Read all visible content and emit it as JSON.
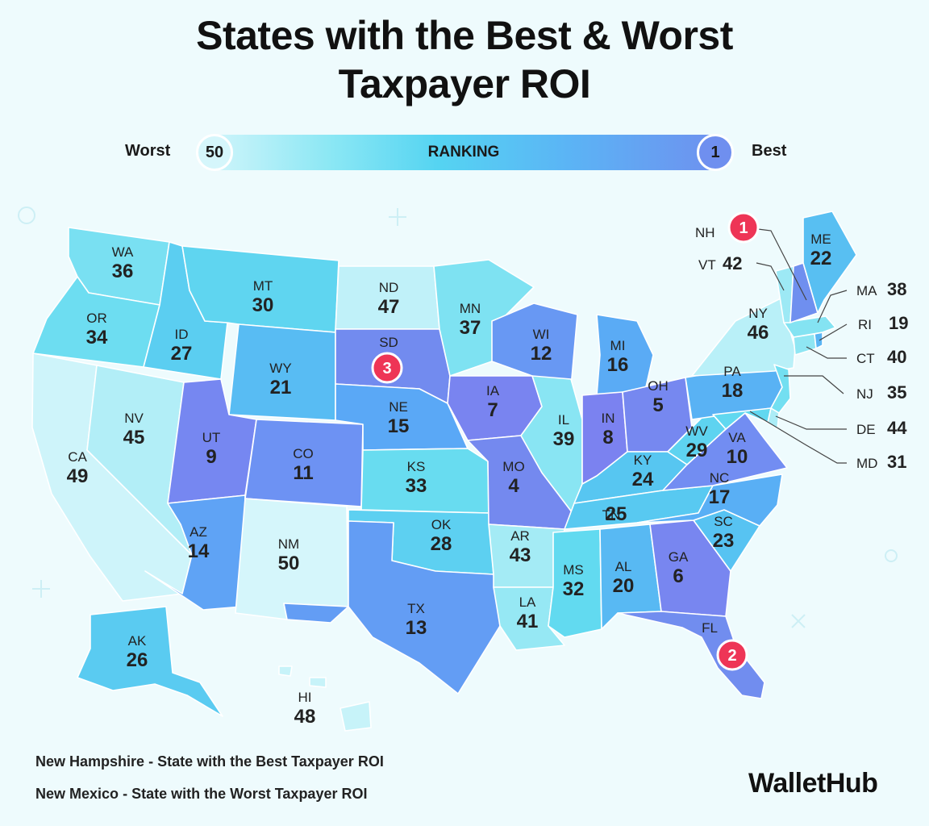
{
  "title": {
    "line1": "States with the Best & Worst",
    "line2": "Taxpayer ROI"
  },
  "legend": {
    "worst_label": "Worst",
    "worst_value": "50",
    "bar_label": "RANKING",
    "best_value": "1",
    "best_label": "Best"
  },
  "colors": {
    "worst": "#d5f6fb",
    "best": "#6f8fef",
    "highlight": "#ee3556",
    "background": "#eefbfd"
  },
  "states": [
    {
      "id": "WA",
      "abbr": "WA",
      "rank": "36"
    },
    {
      "id": "OR",
      "abbr": "OR",
      "rank": "34"
    },
    {
      "id": "CA",
      "abbr": "CA",
      "rank": "49"
    },
    {
      "id": "NV",
      "abbr": "NV",
      "rank": "45"
    },
    {
      "id": "ID",
      "abbr": "ID",
      "rank": "27"
    },
    {
      "id": "MT",
      "abbr": "MT",
      "rank": "30"
    },
    {
      "id": "WY",
      "abbr": "WY",
      "rank": "21"
    },
    {
      "id": "UT",
      "abbr": "UT",
      "rank": "9"
    },
    {
      "id": "AZ",
      "abbr": "AZ",
      "rank": "14"
    },
    {
      "id": "CO",
      "abbr": "CO",
      "rank": "11"
    },
    {
      "id": "NM",
      "abbr": "NM",
      "rank": "50"
    },
    {
      "id": "ND",
      "abbr": "ND",
      "rank": "47"
    },
    {
      "id": "SD",
      "abbr": "SD",
      "rank": "3"
    },
    {
      "id": "NE",
      "abbr": "NE",
      "rank": "15"
    },
    {
      "id": "KS",
      "abbr": "KS",
      "rank": "33"
    },
    {
      "id": "OK",
      "abbr": "OK",
      "rank": "28"
    },
    {
      "id": "TX",
      "abbr": "TX",
      "rank": "13"
    },
    {
      "id": "MN",
      "abbr": "MN",
      "rank": "37"
    },
    {
      "id": "IA",
      "abbr": "IA",
      "rank": "7"
    },
    {
      "id": "MO",
      "abbr": "MO",
      "rank": "4"
    },
    {
      "id": "AR",
      "abbr": "AR",
      "rank": "43"
    },
    {
      "id": "LA",
      "abbr": "LA",
      "rank": "41"
    },
    {
      "id": "WI",
      "abbr": "WI",
      "rank": "12"
    },
    {
      "id": "IL",
      "abbr": "IL",
      "rank": "39"
    },
    {
      "id": "MI",
      "abbr": "MI",
      "rank": "16"
    },
    {
      "id": "IN",
      "abbr": "IN",
      "rank": "8"
    },
    {
      "id": "OH",
      "abbr": "OH",
      "rank": "5"
    },
    {
      "id": "KY",
      "abbr": "KY",
      "rank": "24"
    },
    {
      "id": "TN",
      "abbr": "TN",
      "rank": "25"
    },
    {
      "id": "MS",
      "abbr": "MS",
      "rank": "32"
    },
    {
      "id": "AL",
      "abbr": "AL",
      "rank": "20"
    },
    {
      "id": "GA",
      "abbr": "GA",
      "rank": "6"
    },
    {
      "id": "FL",
      "abbr": "FL",
      "rank": "2"
    },
    {
      "id": "SC",
      "abbr": "SC",
      "rank": "23"
    },
    {
      "id": "NC",
      "abbr": "NC",
      "rank": "17"
    },
    {
      "id": "VA",
      "abbr": "VA",
      "rank": "10"
    },
    {
      "id": "WV",
      "abbr": "WV",
      "rank": "29"
    },
    {
      "id": "PA",
      "abbr": "PA",
      "rank": "18"
    },
    {
      "id": "NY",
      "abbr": "NY",
      "rank": "46"
    },
    {
      "id": "ME",
      "abbr": "ME",
      "rank": "22"
    },
    {
      "id": "NH",
      "abbr": "NH",
      "rank": "1"
    },
    {
      "id": "VT",
      "abbr": "VT",
      "rank": "42"
    },
    {
      "id": "MA",
      "abbr": "MA",
      "rank": "38"
    },
    {
      "id": "RI",
      "abbr": "RI",
      "rank": "19"
    },
    {
      "id": "CT",
      "abbr": "CT",
      "rank": "40"
    },
    {
      "id": "NJ",
      "abbr": "NJ",
      "rank": "35"
    },
    {
      "id": "DE",
      "abbr": "DE",
      "rank": "44"
    },
    {
      "id": "MD",
      "abbr": "MD",
      "rank": "31"
    },
    {
      "id": "AK",
      "abbr": "AK",
      "rank": "26"
    },
    {
      "id": "HI",
      "abbr": "HI",
      "rank": "48"
    }
  ],
  "footnotes": {
    "best_state": "New Hampshire",
    "best_text": "State with the Best Taxpayer ROI",
    "worst_state": "New Mexico",
    "worst_text": "State with the Worst Taxpayer ROI",
    "separator": "-"
  },
  "brand": "WalletHub"
}
